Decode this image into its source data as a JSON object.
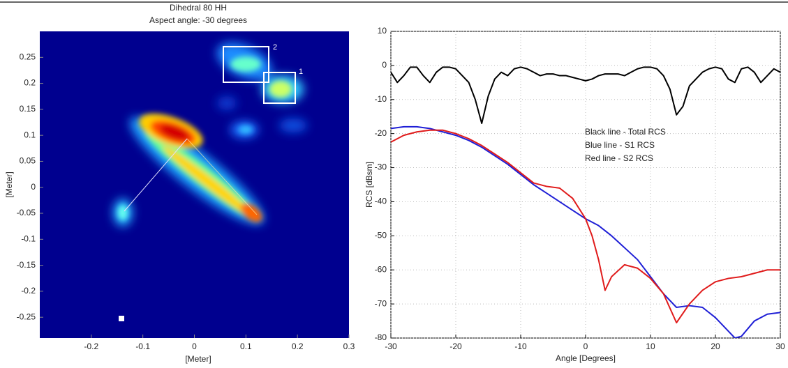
{
  "chart_data": [
    {
      "type": "image",
      "title": "Dihedral 80 HH",
      "subtitle": "Aspect angle: -30 degrees",
      "x_label": "[Meter]",
      "y_label": "[Meter]",
      "xlim": [
        -0.3,
        0.3
      ],
      "ylim": [
        -0.29,
        0.3
      ],
      "xticks": [
        -0.2,
        -0.1,
        0,
        0.1,
        0.2,
        0.3
      ],
      "yticks": [
        0.25,
        0.2,
        0.15,
        0.1,
        0.05,
        0,
        -0.05,
        -0.1,
        -0.15,
        -0.2,
        -0.25
      ],
      "annotations": [
        "1",
        "2"
      ]
    },
    {
      "type": "line",
      "x_label": "Angle [Degrees]",
      "y_label": "RCS [dBsm]",
      "xlim": [
        -30,
        30
      ],
      "ylim": [
        -80,
        10
      ],
      "xticks": [
        -30,
        -20,
        -10,
        0,
        10,
        20,
        30
      ],
      "yticks": [
        10,
        0,
        -10,
        -20,
        -30,
        -40,
        -50,
        -60,
        -70,
        -80
      ],
      "grid": true,
      "series": [
        {
          "name": "Black line - Total RCS",
          "color": "#000000",
          "x": [
            -30,
            -29,
            -28,
            -27,
            -26,
            -25,
            -24,
            -23,
            -22,
            -21,
            -20,
            -19,
            -18,
            -17,
            -16,
            -15,
            -14,
            -13,
            -12,
            -11,
            -10,
            -9,
            -8,
            -7,
            -6,
            -5,
            -4,
            -3,
            -2,
            -1,
            0,
            1,
            2,
            3,
            4,
            5,
            6,
            7,
            8,
            9,
            10,
            11,
            12,
            13,
            14,
            15,
            16,
            17,
            18,
            19,
            20,
            21,
            22,
            23,
            24,
            25,
            26,
            27,
            28,
            29,
            30
          ],
          "values": [
            -2,
            -5,
            -3,
            -0.5,
            -0.5,
            -3,
            -5,
            -2,
            -0.5,
            -0.5,
            -1,
            -3,
            -5,
            -10,
            -17,
            -9,
            -4,
            -2,
            -3,
            -1,
            -0.5,
            -1,
            -2,
            -3,
            -2.5,
            -2.5,
            -3,
            -3,
            -3.5,
            -4,
            -4.5,
            -4,
            -3,
            -2.5,
            -2.5,
            -2.5,
            -3,
            -2,
            -1,
            -0.5,
            -0.5,
            -1,
            -3,
            -7,
            -14.5,
            -12,
            -6,
            -4,
            -2,
            -1,
            -0.5,
            -1,
            -4,
            -5,
            -1,
            -0.5,
            -2,
            -5,
            -3,
            -1,
            -2
          ]
        },
        {
          "name": "Blue line - S1 RCS",
          "color": "#1f1fd6",
          "x": [
            -30,
            -28,
            -26,
            -24,
            -22,
            -20,
            -18,
            -16,
            -14,
            -12,
            -10,
            -8,
            -6,
            -4,
            -2,
            0,
            2,
            4,
            6,
            8,
            10,
            12,
            14,
            16,
            18,
            20,
            22,
            23,
            24,
            26,
            28,
            30
          ],
          "values": [
            -18.5,
            -18,
            -18,
            -18.5,
            -19.5,
            -20.5,
            -22,
            -24,
            -26.5,
            -29,
            -32,
            -35,
            -37.5,
            -40,
            -42.5,
            -45,
            -47,
            -50,
            -53.5,
            -57,
            -62,
            -67,
            -71,
            -70.5,
            -71,
            -74,
            -78,
            -80,
            -79.5,
            -75,
            -73,
            -72.5
          ]
        },
        {
          "name": "Red line - S2 RCS",
          "color": "#e01b1b",
          "x": [
            -30,
            -28,
            -26,
            -24,
            -22,
            -20,
            -18,
            -16,
            -14,
            -12,
            -10,
            -8,
            -6,
            -4,
            -2,
            0,
            1,
            2,
            3,
            4,
            6,
            8,
            10,
            12,
            14,
            16,
            18,
            20,
            22,
            24,
            26,
            28,
            30
          ],
          "values": [
            -22.5,
            -20.5,
            -19.5,
            -19,
            -19,
            -20,
            -21.5,
            -23.5,
            -26,
            -28.5,
            -31.5,
            -34.5,
            -35.5,
            -36,
            -39,
            -45,
            -50,
            -57,
            -66,
            -62,
            -58.5,
            -59.5,
            -62.5,
            -67,
            -75.5,
            -70,
            -66,
            -63.5,
            -62.5,
            -62,
            -61,
            -60,
            -60
          ]
        }
      ]
    }
  ]
}
